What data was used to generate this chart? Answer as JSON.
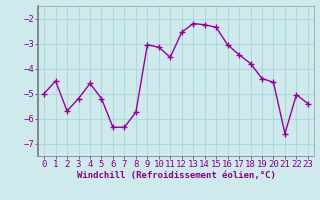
{
  "x": [
    0,
    1,
    2,
    3,
    4,
    5,
    6,
    7,
    8,
    9,
    10,
    11,
    12,
    13,
    14,
    15,
    16,
    17,
    18,
    19,
    20,
    21,
    22,
    23
  ],
  "y": [
    -5.0,
    -4.5,
    -5.7,
    -5.2,
    -4.6,
    -5.2,
    -6.35,
    -6.35,
    -5.75,
    -3.05,
    -3.15,
    -3.55,
    -2.55,
    -2.2,
    -2.25,
    -2.35,
    -3.05,
    -3.45,
    -3.8,
    -4.4,
    -4.55,
    -6.6,
    -5.05,
    -5.4
  ],
  "line_color": "#990099",
  "marker": "+",
  "markersize": 4,
  "linewidth": 1.0,
  "markeredgewidth": 1.0,
  "background_color": "#ceeaed",
  "grid_color": "#b0d8dc",
  "xlabel": "Windchill (Refroidissement éolien,°C)",
  "xlabel_fontsize": 6.5,
  "tick_fontsize": 6.5,
  "tick_color": "#880088",
  "label_color": "#880088",
  "ylim": [
    -7.5,
    -1.5
  ],
  "yticks": [
    -7,
    -6,
    -5,
    -4,
    -3,
    -2
  ],
  "xlim": [
    -0.5,
    23.5
  ],
  "xticks": [
    0,
    1,
    2,
    3,
    4,
    5,
    6,
    7,
    8,
    9,
    10,
    11,
    12,
    13,
    14,
    15,
    16,
    17,
    18,
    19,
    20,
    21,
    22,
    23
  ]
}
